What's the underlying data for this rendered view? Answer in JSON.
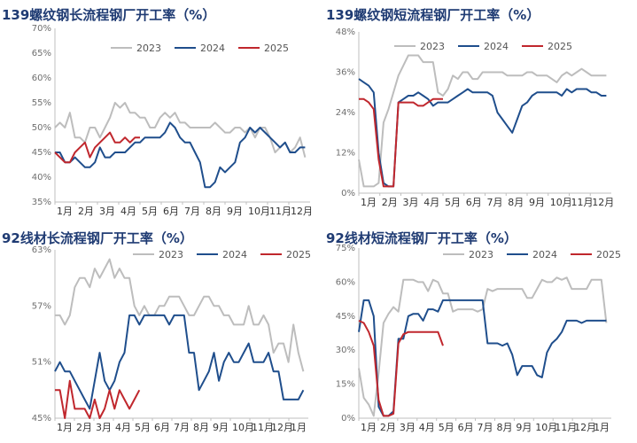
{
  "chart_data": [
    {
      "type": "line",
      "title": "139螺纹钢长流程钢厂开工率（%）",
      "x_tick_labels": [
        "1月",
        "2月",
        "3月",
        "4月",
        "5月",
        "6月",
        "7月",
        "8月",
        "9月",
        "10月",
        "11月",
        "12月"
      ],
      "y_tick_labels": [
        "35%",
        "40%",
        "45%",
        "50%",
        "55%",
        "60%",
        "65%",
        "70%"
      ],
      "ylim": [
        35,
        70
      ],
      "xlim": [
        0,
        51
      ],
      "grid": false,
      "legend_position": "top-center",
      "series": [
        {
          "name": "2023",
          "color": "#bdbdbd",
          "x": [
            0,
            1,
            2,
            3,
            4,
            5,
            6,
            7,
            8,
            9,
            10,
            11,
            12,
            13,
            14,
            15,
            16,
            17,
            18,
            19,
            20,
            21,
            22,
            23,
            24,
            25,
            26,
            27,
            28,
            29,
            30,
            31,
            32,
            33,
            34,
            35,
            36,
            37,
            38,
            39,
            40,
            41,
            42,
            43,
            44,
            45,
            46,
            47,
            48,
            49,
            50
          ],
          "y": [
            50,
            51,
            50,
            53,
            48,
            48,
            47,
            50,
            50,
            48,
            50,
            52,
            55,
            54,
            55,
            53,
            53,
            52,
            52,
            50,
            50,
            52,
            53,
            52,
            53,
            51,
            51,
            50,
            50,
            50,
            50,
            50,
            51,
            50,
            49,
            49,
            50,
            50,
            49,
            50,
            48,
            50,
            50,
            48,
            45,
            46,
            47,
            45,
            46,
            48,
            44
          ]
        },
        {
          "name": "2024",
          "color": "#1f4e8c",
          "x": [
            0,
            1,
            2,
            3,
            4,
            5,
            6,
            7,
            8,
            9,
            10,
            11,
            12,
            13,
            14,
            15,
            16,
            17,
            18,
            19,
            20,
            21,
            22,
            23,
            24,
            25,
            26,
            27,
            28,
            29,
            30,
            31,
            32,
            33,
            34,
            35,
            36,
            37,
            38,
            39,
            40,
            41,
            42,
            43,
            44,
            45,
            46,
            47,
            48,
            49,
            50
          ],
          "y": [
            45,
            45,
            43,
            43,
            44,
            43,
            42,
            42,
            43,
            46,
            44,
            44,
            45,
            45,
            45,
            46,
            47,
            47,
            48,
            48,
            48,
            48,
            49,
            51,
            50,
            48,
            47,
            47,
            45,
            43,
            38,
            38,
            39,
            42,
            41,
            42,
            43,
            47,
            48,
            50,
            49,
            50,
            49,
            48,
            47,
            46,
            47,
            45,
            45,
            46,
            46
          ]
        },
        {
          "name": "2025",
          "color": "#c0272d",
          "x": [
            0,
            1,
            2,
            3,
            4,
            5,
            6,
            7,
            8,
            9,
            10,
            11,
            12,
            13,
            14,
            15,
            16,
            17
          ],
          "y": [
            45,
            44,
            43,
            43,
            45,
            46,
            47,
            44,
            46,
            47,
            48,
            49,
            47,
            47,
            48,
            47,
            48,
            48
          ]
        }
      ]
    },
    {
      "type": "line",
      "title": "139螺纹钢短流程钢厂开工率（%）",
      "x_tick_labels": [
        "1月",
        "2月",
        "3月",
        "4月",
        "5月",
        "6月",
        "7月",
        "8月",
        "9月",
        "10月",
        "11月",
        "12月"
      ],
      "y_tick_labels": [
        "0%",
        "12%",
        "24%",
        "36%",
        "48%"
      ],
      "ylim": [
        0,
        48
      ],
      "xlim": [
        0,
        51
      ],
      "grid": false,
      "legend_position": "top-center",
      "series": [
        {
          "name": "2023",
          "color": "#bdbdbd",
          "x": [
            0,
            1,
            2,
            3,
            4,
            5,
            6,
            7,
            8,
            9,
            10,
            11,
            12,
            13,
            14,
            15,
            16,
            17,
            18,
            19,
            20,
            21,
            22,
            23,
            24,
            25,
            26,
            27,
            28,
            29,
            30,
            31,
            32,
            33,
            34,
            35,
            36,
            37,
            38,
            39,
            40,
            41,
            42,
            43,
            44,
            45,
            46,
            47,
            48,
            49,
            50
          ],
          "y": [
            10,
            2,
            2,
            2,
            3,
            21,
            25,
            30,
            35,
            38,
            41,
            41,
            41,
            39,
            39,
            39,
            30,
            29,
            31,
            35,
            34,
            36,
            36,
            34,
            34,
            36,
            36,
            36,
            36,
            36,
            35,
            35,
            35,
            35,
            36,
            36,
            35,
            35,
            35,
            34,
            33,
            35,
            36,
            35,
            36,
            37,
            36,
            35,
            35,
            35,
            35
          ]
        },
        {
          "name": "2024",
          "color": "#1f4e8c",
          "x": [
            0,
            1,
            2,
            3,
            4,
            5,
            6,
            7,
            8,
            9,
            10,
            11,
            12,
            13,
            14,
            15,
            16,
            17,
            18,
            19,
            20,
            21,
            22,
            23,
            24,
            25,
            26,
            27,
            28,
            29,
            30,
            31,
            32,
            33,
            34,
            35,
            36,
            37,
            38,
            39,
            40,
            41,
            42,
            43,
            44,
            45,
            46,
            47,
            48,
            49,
            50
          ],
          "y": [
            34,
            33,
            32,
            30,
            12,
            3,
            2,
            2,
            27,
            28,
            29,
            29,
            30,
            29,
            28,
            26,
            27,
            27,
            27,
            28,
            29,
            30,
            31,
            30,
            30,
            30,
            30,
            29,
            24,
            22,
            20,
            18,
            22,
            26,
            27,
            29,
            30,
            30,
            30,
            30,
            30,
            29,
            31,
            30,
            31,
            31,
            31,
            30,
            30,
            29,
            29
          ]
        },
        {
          "name": "2025",
          "color": "#c0272d",
          "x": [
            0,
            1,
            2,
            3,
            4,
            5,
            6,
            7,
            8,
            9,
            10,
            11,
            12,
            13,
            14,
            15,
            16,
            17
          ],
          "y": [
            28,
            28,
            27,
            25,
            10,
            2,
            2,
            2,
            27,
            27,
            27,
            27,
            26,
            26,
            27,
            28,
            28,
            28
          ]
        }
      ]
    },
    {
      "type": "line",
      "title": "92线材长流程钢厂开工率（%）",
      "x_tick_labels": [
        "1月",
        "2月",
        "3月",
        "4月",
        "5月",
        "6月",
        "7月",
        "8月",
        "9月",
        "10月",
        "11月",
        "12月",
        "1月"
      ],
      "y_tick_labels": [
        "45%",
        "51%",
        "57%",
        "63%"
      ],
      "ylim": [
        45,
        63
      ],
      "xlim": [
        0,
        51
      ],
      "grid": false,
      "legend_position": "top-center",
      "series": [
        {
          "name": "2023",
          "color": "#bdbdbd",
          "x": [
            0,
            1,
            2,
            3,
            4,
            5,
            6,
            7,
            8,
            9,
            10,
            11,
            12,
            13,
            14,
            15,
            16,
            17,
            18,
            19,
            20,
            21,
            22,
            23,
            24,
            25,
            26,
            27,
            28,
            29,
            30,
            31,
            32,
            33,
            34,
            35,
            36,
            37,
            38,
            39,
            40,
            41,
            42,
            43,
            44,
            45,
            46,
            47,
            48,
            49,
            50
          ],
          "y": [
            56,
            56,
            55,
            56,
            59,
            60,
            60,
            59,
            61,
            60,
            61,
            62,
            60,
            61,
            60,
            60,
            57,
            56,
            57,
            56,
            56,
            57,
            57,
            58,
            58,
            58,
            57,
            56,
            56,
            57,
            58,
            58,
            57,
            57,
            56,
            56,
            55,
            55,
            55,
            57,
            55,
            55,
            56,
            55,
            52,
            53,
            53,
            51,
            55,
            52,
            50
          ]
        },
        {
          "name": "2024",
          "color": "#1f4e8c",
          "x": [
            0,
            1,
            2,
            3,
            4,
            5,
            6,
            7,
            8,
            9,
            10,
            11,
            12,
            13,
            14,
            15,
            16,
            17,
            18,
            19,
            20,
            21,
            22,
            23,
            24,
            25,
            26,
            27,
            28,
            29,
            30,
            31,
            32,
            33,
            34,
            35,
            36,
            37,
            38,
            39,
            40,
            41,
            42,
            43,
            44,
            45,
            46,
            47,
            48,
            49,
            50
          ],
          "y": [
            50,
            51,
            50,
            50,
            49,
            48,
            47,
            46,
            49,
            52,
            49,
            48,
            49,
            51,
            52,
            56,
            56,
            55,
            56,
            56,
            56,
            56,
            56,
            55,
            56,
            56,
            56,
            52,
            52,
            48,
            49,
            50,
            52,
            49,
            51,
            52,
            51,
            51,
            52,
            53,
            51,
            51,
            51,
            52,
            50,
            50,
            47,
            47,
            47,
            47,
            48
          ]
        },
        {
          "name": "2025",
          "color": "#c0272d",
          "x": [
            0,
            1,
            2,
            3,
            4,
            5,
            6,
            7,
            8,
            9,
            10,
            11,
            12,
            13,
            14,
            15,
            16,
            17
          ],
          "y": [
            48,
            48,
            45,
            49,
            46,
            46,
            46,
            45,
            47,
            45,
            46,
            48,
            46,
            48,
            47,
            46,
            47,
            48
          ]
        }
      ]
    },
    {
      "type": "line",
      "title": "92线材短流程钢厂开工率（%）",
      "x_tick_labels": [
        "1月",
        "2月",
        "3月",
        "4月",
        "5月",
        "6月",
        "7月",
        "8月",
        "9月",
        "10月",
        "11月",
        "12月",
        "1月"
      ],
      "y_tick_labels": [
        "0%",
        "15%",
        "30%",
        "45%",
        "60%",
        "75%"
      ],
      "ylim": [
        0,
        75
      ],
      "xlim": [
        0,
        51
      ],
      "grid": false,
      "legend_position": "top-center",
      "series": [
        {
          "name": "2023",
          "color": "#bdbdbd",
          "x": [
            0,
            1,
            2,
            3,
            4,
            5,
            6,
            7,
            8,
            9,
            10,
            11,
            12,
            13,
            14,
            15,
            16,
            17,
            18,
            19,
            20,
            21,
            22,
            23,
            24,
            25,
            26,
            27,
            28,
            29,
            30,
            31,
            32,
            33,
            34,
            35,
            36,
            37,
            38,
            39,
            40,
            41,
            42,
            43,
            44,
            45,
            46,
            47,
            48,
            49,
            50
          ],
          "y": [
            22,
            9,
            6,
            1,
            20,
            42,
            46,
            49,
            47,
            61,
            61,
            61,
            60,
            60,
            56,
            61,
            60,
            55,
            55,
            47,
            48,
            48,
            48,
            48,
            47,
            48,
            57,
            56,
            57,
            57,
            57,
            57,
            57,
            57,
            53,
            53,
            57,
            61,
            60,
            60,
            62,
            61,
            62,
            57,
            57,
            57,
            57,
            61,
            61,
            61,
            42
          ]
        },
        {
          "name": "2024",
          "color": "#1f4e8c",
          "x": [
            0,
            1,
            2,
            3,
            4,
            5,
            6,
            7,
            8,
            9,
            10,
            11,
            12,
            13,
            14,
            15,
            16,
            17,
            18,
            19,
            20,
            21,
            22,
            23,
            24,
            25,
            26,
            27,
            28,
            29,
            30,
            31,
            32,
            33,
            34,
            35,
            36,
            37,
            38,
            39,
            40,
            41,
            42,
            43,
            44,
            45,
            46,
            47,
            48,
            49,
            50
          ],
          "y": [
            38,
            52,
            52,
            45,
            5,
            1,
            1,
            3,
            35,
            35,
            45,
            46,
            46,
            43,
            48,
            48,
            47,
            52,
            52,
            52,
            52,
            52,
            52,
            52,
            52,
            52,
            33,
            33,
            33,
            32,
            33,
            28,
            19,
            23,
            23,
            23,
            19,
            18,
            29,
            33,
            35,
            38,
            43,
            43,
            43,
            42,
            43,
            43,
            43,
            43,
            43
          ]
        },
        {
          "name": "2025",
          "color": "#c0272d",
          "x": [
            0,
            1,
            2,
            3,
            4,
            5,
            6,
            7,
            8,
            9,
            10,
            11,
            12,
            13,
            14,
            15,
            16,
            17
          ],
          "y": [
            43,
            42,
            38,
            32,
            8,
            1,
            1,
            2,
            33,
            37,
            38,
            38,
            38,
            38,
            38,
            38,
            38,
            32
          ]
        }
      ]
    }
  ]
}
